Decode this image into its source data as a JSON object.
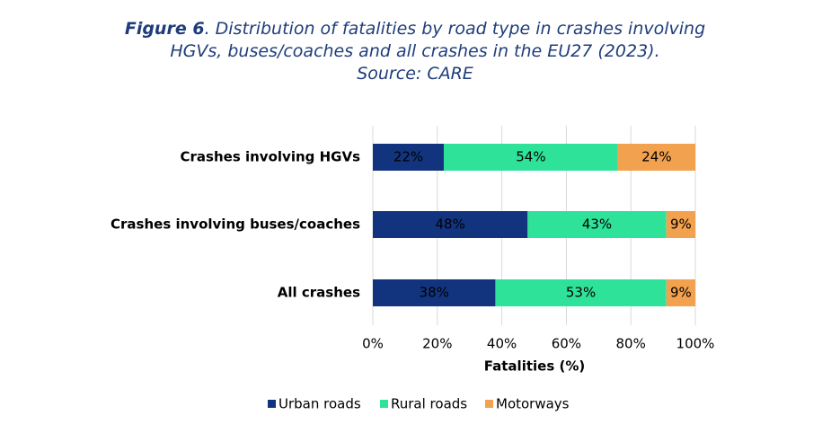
{
  "chart_data": {
    "type": "stacked-bar-horizontal",
    "title_label": "Figure 6",
    "title": ". Distribution of fatalities by road type in crashes involving HGVs, buses/coaches and all crashes in the EU27 (2023).",
    "subtitle": "Source: CARE",
    "x_label": "Fatalities (%)",
    "categories": [
      "Crashes involving HGVs",
      "Crashes involving buses/coaches",
      "All crashes"
    ],
    "series": [
      {
        "name": "Urban roads",
        "color": "#12347f",
        "values": [
          22,
          48,
          38
        ],
        "value_labels": [
          "22%",
          "48%",
          "38%"
        ]
      },
      {
        "name": "Rural roads",
        "color": "#2ee29a",
        "values": [
          54,
          43,
          53
        ],
        "value_labels": [
          "54%",
          "43%",
          "53%"
        ]
      },
      {
        "name": "Motorways",
        "color": "#f2a14e",
        "values": [
          24,
          9,
          9
        ],
        "value_labels": [
          "24%",
          "9%",
          "9%"
        ]
      }
    ],
    "xlim": [
      0,
      100
    ],
    "xticks": [
      {
        "value": 0,
        "label": "0%"
      },
      {
        "value": 20,
        "label": "20%"
      },
      {
        "value": 40,
        "label": "40%"
      },
      {
        "value": 60,
        "label": "60%"
      },
      {
        "value": 80,
        "label": "80%"
      },
      {
        "value": 100,
        "label": "100%"
      }
    ],
    "grid": true,
    "legend": "bottom"
  }
}
